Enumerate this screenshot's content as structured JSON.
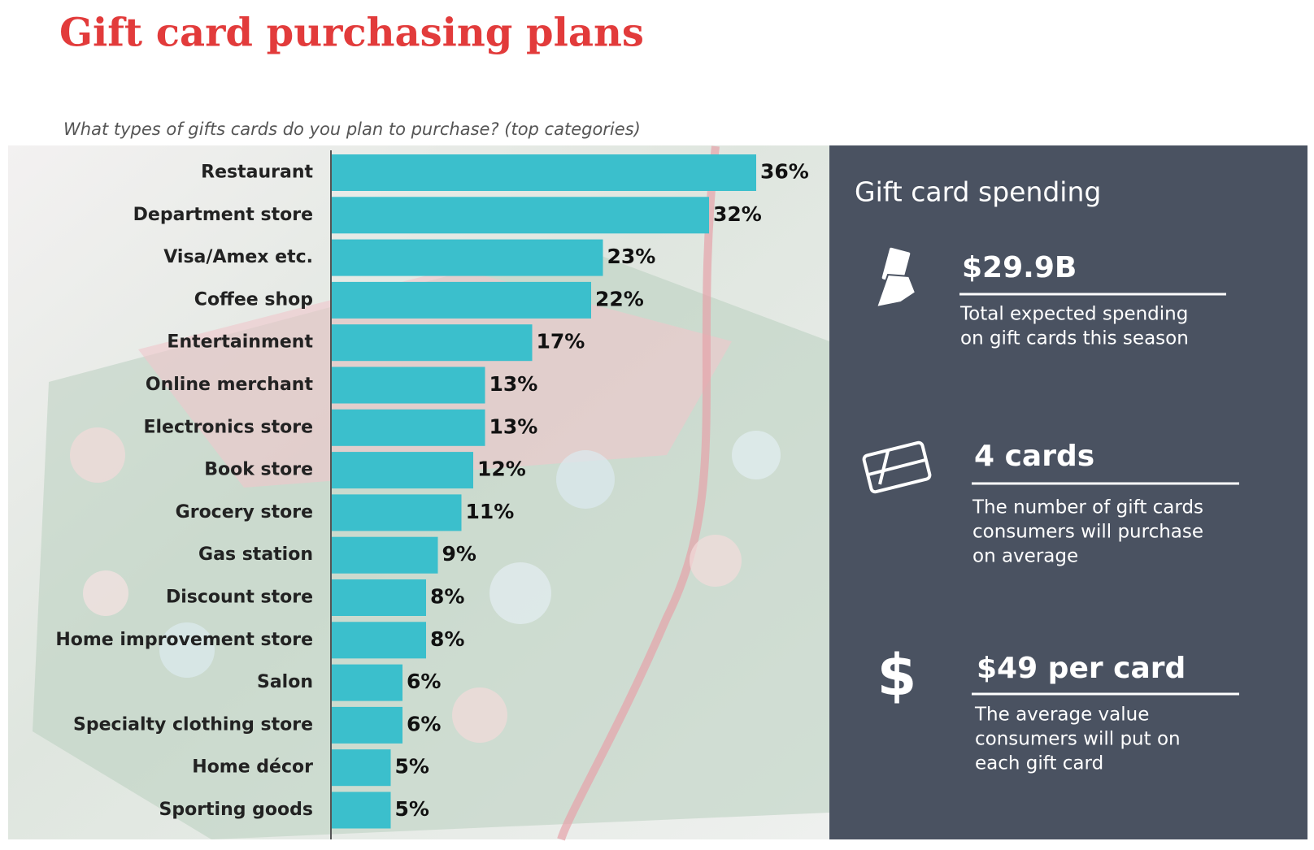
{
  "title": "Gift card purchasing plans",
  "chart_data": {
    "type": "bar",
    "orientation": "horizontal",
    "subtitle": "What types of gifts cards do you plan to purchase? (top categories)",
    "categories": [
      "Restaurant",
      "Department store",
      "Visa/Amex etc.",
      "Coffee shop",
      "Entertainment",
      "Online merchant",
      "Electronics store",
      "Book store",
      "Grocery store",
      "Gas station",
      "Discount store",
      "Home improvement store",
      "Salon",
      "Specialty clothing store",
      "Home décor",
      "Sporting goods"
    ],
    "values": [
      36,
      32,
      23,
      22,
      17,
      13,
      13,
      12,
      11,
      9,
      8,
      8,
      6,
      6,
      5,
      5
    ],
    "value_labels": [
      "36%",
      "32%",
      "23%",
      "22%",
      "17%",
      "13%",
      "13%",
      "12%",
      "11%",
      "9%",
      "8%",
      "8%",
      "6%",
      "6%",
      "5%",
      "5%"
    ],
    "color": "#3bbfcc"
  },
  "panel": {
    "title": "Gift card spending",
    "stats": [
      {
        "value": "$29.9B",
        "description": [
          "Total expected spending",
          "on gift cards this season"
        ]
      },
      {
        "value": "4 cards",
        "description": [
          "The number of gift cards",
          "consumers will purchase",
          "on average"
        ]
      },
      {
        "value": "$49 per card",
        "description": [
          "The average value",
          "consumers will put on",
          "each gift card"
        ]
      }
    ]
  }
}
